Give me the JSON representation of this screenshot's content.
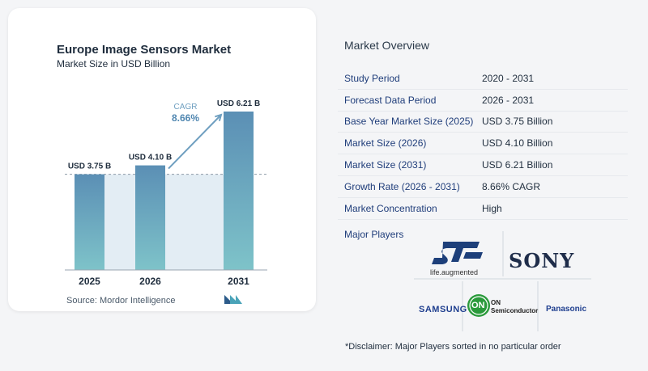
{
  "chart_data": {
    "type": "bar",
    "title": "Europe Image Sensors Market",
    "subtitle": "Market Size in USD Billion",
    "categories": [
      "2025",
      "2026",
      "2031"
    ],
    "values": [
      3.75,
      4.1,
      6.21
    ],
    "value_labels": [
      "USD 3.75 B",
      "USD 4.10 B",
      "USD 6.21 B"
    ],
    "cagr_label": "CAGR",
    "cagr_value": "8.66%",
    "ylim": [
      0,
      6.21
    ],
    "bar_color_top": "#5b8fb5",
    "bar_color_bottom": "#7ec3c9"
  },
  "source": "Source:  Mordor Intelligence",
  "overview": {
    "title": "Market Overview",
    "rows": [
      {
        "label": "Study Period",
        "value": "2020 - 2031"
      },
      {
        "label": "Forecast Data Period",
        "value": "2026 - 2031"
      },
      {
        "label": "Base Year Market Size (2025)",
        "value": "USD 3.75 Billion"
      },
      {
        "label": "Market Size (2026)",
        "value": "USD 4.10 Billion"
      },
      {
        "label": "Market Size (2031)",
        "value": "USD 6.21 Billion"
      },
      {
        "label": "Growth Rate (2026 - 2031)",
        "value": "8.66% CAGR"
      },
      {
        "label": "Market Concentration",
        "value": "High"
      }
    ]
  },
  "players": {
    "title": "Major Players",
    "st_caption": "life.augmented",
    "sony": "SONY",
    "samsung": "SAMSUNG",
    "on_mark": "ON",
    "on_line1": "ON",
    "on_line2": "Semiconductor",
    "panasonic": "Panasonic"
  },
  "disclaimer": "*Disclaimer: Major Players sorted in no particular order"
}
